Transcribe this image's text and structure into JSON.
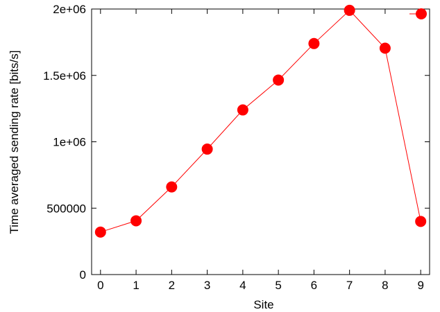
{
  "chart_data": {
    "type": "line",
    "title": "",
    "xlabel": "Site",
    "ylabel": "Time averaged sending rate [bits/s]",
    "xlim": [
      -0.25,
      9.25
    ],
    "ylim": [
      0,
      2000000
    ],
    "x_ticks": [
      0,
      1,
      2,
      3,
      4,
      5,
      6,
      7,
      8,
      9
    ],
    "x_tick_labels": [
      "0",
      "1",
      "2",
      "3",
      "4",
      "5",
      "6",
      "7",
      "8",
      "9"
    ],
    "y_ticks": [
      0,
      500000,
      1000000,
      1500000,
      2000000
    ],
    "y_tick_labels": [
      "0",
      "500000",
      "1e+06",
      "1.5e+06",
      "2e+06"
    ],
    "grid": false,
    "legend": {
      "position": "top-right",
      "entries": [
        ""
      ]
    },
    "series": [
      {
        "name": "",
        "color": "#ff0000",
        "marker": "circle",
        "x": [
          0,
          1,
          2,
          3,
          4,
          5,
          6,
          7,
          8,
          9
        ],
        "y": [
          320000,
          405000,
          660000,
          945000,
          1240000,
          1465000,
          1740000,
          1990000,
          1705000,
          400000
        ]
      }
    ]
  }
}
